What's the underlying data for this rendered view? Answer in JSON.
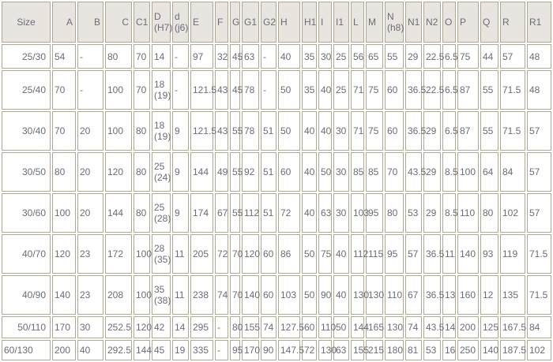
{
  "colors": {
    "border": "#b1a88f",
    "header_bg": "#e8e5e0",
    "text": "#6d6b76",
    "row_bg": "#ffffff"
  },
  "table": {
    "header_labels": [
      "Size",
      "A",
      "B",
      "C",
      "C1",
      "D\n(H7)",
      "d\n(j6)",
      "E",
      "F",
      "G",
      "G1",
      "G2",
      "H",
      "H1",
      "I",
      "I1",
      "L",
      "M",
      "N\n(h8)",
      "N1",
      "N2",
      "O",
      "P",
      "Q",
      "R",
      "R1"
    ],
    "rows": [
      {
        "size": "25/30",
        "values": [
          "54",
          "-",
          "80",
          "70",
          "14",
          "-",
          "97",
          "32",
          "45",
          "63",
          "-",
          "40",
          "35",
          "30",
          "25",
          "56",
          "65",
          "55",
          "29",
          "22.5",
          "6.5",
          "75",
          "44",
          "57",
          "48"
        ]
      },
      {
        "size": "25/40",
        "values": [
          "70",
          "-",
          "100",
          "70",
          "18\n(19)",
          "-",
          "121.5",
          "43",
          "45",
          "78",
          "-",
          "50",
          "35",
          "40",
          "25",
          "71",
          "75",
          "60",
          "36.5",
          "22.5",
          "6.5",
          "87",
          "55",
          "71.5",
          "48"
        ]
      },
      {
        "size": "30/40",
        "values": [
          "70",
          "20",
          "100",
          "80",
          "18\n(19)",
          "9",
          "121.5",
          "43",
          "55",
          "78",
          "51",
          "50",
          "40",
          "40",
          "30",
          "71",
          "75",
          "60",
          "36.5",
          "29",
          "6.5",
          "87",
          "55",
          "71.5",
          "57"
        ]
      },
      {
        "size": "30/50",
        "values": [
          "80",
          "20",
          "120",
          "80",
          "25\n(24)",
          "9",
          "144",
          "49",
          "55",
          "92",
          "51",
          "60",
          "40",
          "50",
          "30",
          "85",
          "85",
          "70",
          "43.5",
          "29",
          "8.5",
          "100",
          "64",
          "84",
          "57"
        ]
      },
      {
        "size": "30/60",
        "values": [
          "100",
          "20",
          "144",
          "80",
          "25\n(28)",
          "9",
          "174",
          "67",
          "55",
          "112",
          "51",
          "72",
          "40",
          "63",
          "30",
          "103",
          "95",
          "80",
          "53",
          "29",
          "8.5",
          "110",
          "80",
          "102",
          "57"
        ]
      },
      {
        "size": "40/70",
        "values": [
          "120",
          "23",
          "172",
          "100",
          "28\n(35)",
          "11",
          "205",
          "72",
          "70",
          "120",
          "60",
          "86",
          "50",
          "75",
          "40",
          "112",
          "115",
          "95",
          "57",
          "36.5",
          "11",
          "140",
          "93",
          "119",
          "71.5"
        ]
      },
      {
        "size": "40/90",
        "values": [
          "140",
          "23",
          "208",
          "100",
          "35\n(38)",
          "11",
          "238",
          "74",
          "70",
          "140",
          "60",
          "103",
          "50",
          "90",
          "40",
          "130",
          "130",
          "110",
          "67",
          "36.5",
          "13",
          "160",
          "12",
          "135",
          "71.5"
        ]
      },
      {
        "size": "50/110",
        "values": [
          "170",
          "30",
          "252.5",
          "120",
          "42",
          "14",
          "295",
          "-",
          "80",
          "155",
          "74",
          "127.5",
          "60",
          "110",
          "50",
          "144",
          "165",
          "130",
          "74",
          "43.5",
          "14",
          "200",
          "125",
          "167.5",
          "84"
        ]
      },
      {
        "size": "60/130",
        "values": [
          "200",
          "40",
          "292.5",
          "144",
          "45",
          "19",
          "335",
          "-",
          "95",
          "170",
          "90",
          "147.5",
          "72",
          "130",
          "63",
          "155",
          "215",
          "180",
          "81",
          "53",
          "16",
          "250",
          "140",
          "187.5",
          "102"
        ]
      }
    ]
  }
}
